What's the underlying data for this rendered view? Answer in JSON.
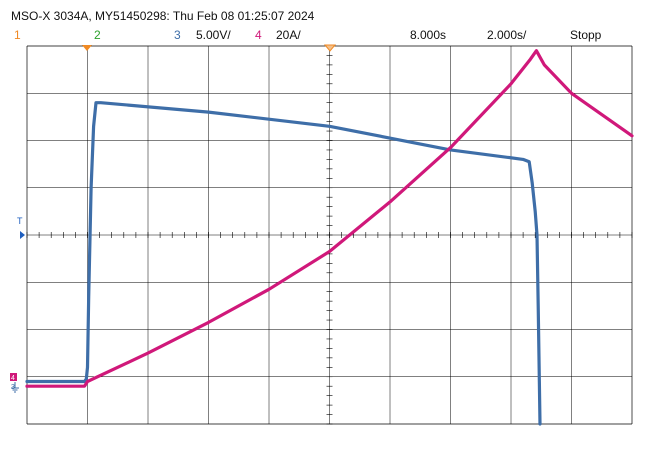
{
  "header": {
    "title": "MSO-X 3034A, MY51450298: Thu Feb 08 01:25:07 2024",
    "ch1_label": "1",
    "ch2_label": "2",
    "ch3_label": "3",
    "ch3_scale": "5.00V/",
    "ch4_label": "4",
    "ch4_scale": "20A/",
    "timebase_pos": "8.000s",
    "timebase_scale": "2.000s/",
    "run_state": "Stopp"
  },
  "markers": {
    "trigger_level_label": "T",
    "ground_label_ch4": "4",
    "ground_label_ch3": "3"
  },
  "colors": {
    "ch1": "#f08a24",
    "ch2": "#2ca02c",
    "ch3": "#3e6ea8",
    "ch4": "#d0187a",
    "grid": "#000000",
    "trigger_marker": "#f08a24",
    "level_marker": "#1f5fbf"
  },
  "chart_data": {
    "type": "line",
    "title": "",
    "xlabel": "",
    "ylabel": "",
    "grid": true,
    "grid_divisions": {
      "x": 10,
      "y": 8
    },
    "x_units": "divisions",
    "y_units": "divisions",
    "xlim": [
      0,
      10
    ],
    "ylim": [
      -4,
      4
    ],
    "series": [
      {
        "channel": "3",
        "scale": "5.00V/",
        "color": "#3e6ea8",
        "points": [
          [
            0.0,
            -3.1
          ],
          [
            0.95,
            -3.1
          ],
          [
            0.98,
            -3.05
          ],
          [
            1.0,
            -2.8
          ],
          [
            1.02,
            -1.3
          ],
          [
            1.06,
            1.0
          ],
          [
            1.1,
            2.3
          ],
          [
            1.14,
            2.8
          ],
          [
            1.22,
            2.8
          ],
          [
            3.0,
            2.6
          ],
          [
            5.0,
            2.3
          ],
          [
            7.0,
            1.8
          ],
          [
            8.2,
            1.6
          ],
          [
            8.3,
            1.55
          ],
          [
            8.35,
            1.1
          ],
          [
            8.4,
            0.5
          ],
          [
            8.43,
            0.0
          ],
          [
            8.45,
            -1.5
          ],
          [
            8.48,
            -4.0
          ]
        ]
      },
      {
        "channel": "4",
        "scale": "20A/",
        "color": "#d0187a",
        "points": [
          [
            0.0,
            -3.2
          ],
          [
            0.95,
            -3.2
          ],
          [
            1.0,
            -3.1
          ],
          [
            2.0,
            -2.5
          ],
          [
            3.0,
            -1.85
          ],
          [
            4.0,
            -1.15
          ],
          [
            5.0,
            -0.35
          ],
          [
            6.0,
            0.7
          ],
          [
            7.0,
            1.85
          ],
          [
            8.0,
            3.2
          ],
          [
            8.32,
            3.72
          ],
          [
            8.42,
            3.9
          ],
          [
            8.55,
            3.6
          ],
          [
            9.0,
            3.0
          ],
          [
            10.0,
            2.1
          ]
        ]
      }
    ]
  }
}
